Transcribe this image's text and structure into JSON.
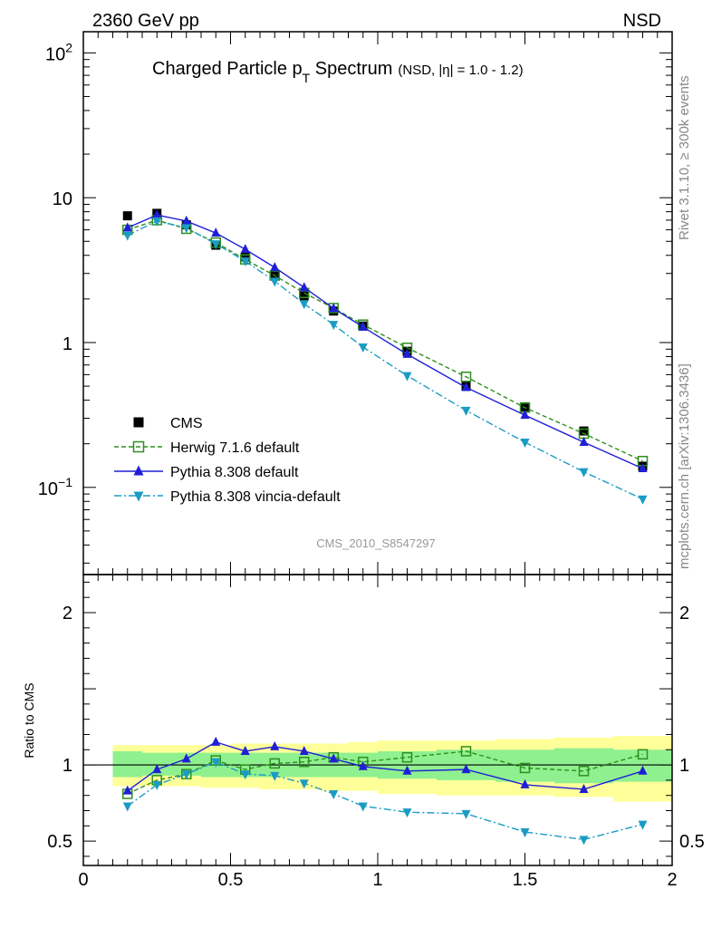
{
  "header": {
    "left": "2360 GeV pp",
    "right": "NSD"
  },
  "side_text": {
    "rivet": "Rivet 3.1.10, ≥ 300k events",
    "mcplots": "mcplots.cern.ch [arXiv:1306.3436]"
  },
  "chart_data": [
    {
      "type": "line",
      "panel": "main",
      "title_main": "Charged Particle p",
      "title_sub": "T",
      "title_rest": " Spectrum",
      "title_extra": "(NSD, |η| = 1.0 - 1.2)",
      "analysis_label": "CMS_2010_S8547297",
      "y_scale": "log",
      "xlim": [
        0,
        2
      ],
      "ylim": [
        0.025,
        140
      ],
      "y_ticks": [
        {
          "value": 100,
          "base": "10",
          "exp": "2"
        },
        {
          "value": 10,
          "base": "10",
          "exp": ""
        },
        {
          "value": 1,
          "base": "1",
          "exp": ""
        },
        {
          "value": 0.1,
          "base": "10",
          "exp": "−1"
        }
      ],
      "legend_position": "lower-left",
      "series": [
        {
          "name": "CMS",
          "color": "#000000",
          "marker": "square-filled",
          "line": "none",
          "x": [
            0.15,
            0.25,
            0.35,
            0.45,
            0.55,
            0.65,
            0.75,
            0.85,
            0.95,
            1.1,
            1.3,
            1.5,
            1.7,
            1.9
          ],
          "y": [
            7.5,
            7.8,
            6.5,
            4.7,
            3.9,
            2.9,
            2.1,
            1.65,
            1.3,
            0.87,
            0.5,
            0.36,
            0.245,
            0.14
          ]
        },
        {
          "name": "Herwig 7.1.6 default",
          "color": "#2f8f1f",
          "marker": "square-open",
          "line": "dashed",
          "x": [
            0.15,
            0.25,
            0.35,
            0.45,
            0.55,
            0.65,
            0.75,
            0.85,
            0.95,
            1.1,
            1.3,
            1.5,
            1.7,
            1.9
          ],
          "y": [
            6.0,
            7.0,
            6.1,
            4.9,
            3.75,
            2.9,
            2.2,
            1.73,
            1.33,
            0.92,
            0.58,
            0.355,
            0.235,
            0.152
          ]
        },
        {
          "name": "Pythia 8.308 default",
          "color": "#1f1fd6",
          "marker": "triangle-up",
          "line": "solid",
          "x": [
            0.15,
            0.25,
            0.35,
            0.45,
            0.55,
            0.65,
            0.75,
            0.85,
            0.95,
            1.1,
            1.3,
            1.5,
            1.7,
            1.9
          ],
          "y": [
            6.2,
            7.6,
            6.9,
            5.7,
            4.4,
            3.3,
            2.4,
            1.72,
            1.28,
            0.83,
            0.49,
            0.315,
            0.205,
            0.135
          ]
        },
        {
          "name": "Pythia 8.308 vincia-default",
          "color": "#1b9cc4",
          "marker": "triangle-down",
          "line": "dashdot",
          "x": [
            0.15,
            0.25,
            0.35,
            0.45,
            0.55,
            0.65,
            0.75,
            0.85,
            0.95,
            1.1,
            1.3,
            1.5,
            1.7,
            1.9
          ],
          "y": [
            5.5,
            6.9,
            6.2,
            4.8,
            3.65,
            2.65,
            1.85,
            1.33,
            0.93,
            0.59,
            0.34,
            0.205,
            0.128,
            0.083
          ]
        }
      ]
    },
    {
      "type": "line",
      "panel": "ratio",
      "ylabel": "Ratio to CMS",
      "xlim": [
        0,
        2
      ],
      "ylim": [
        0.34,
        2.25
      ],
      "x_ticks": [
        {
          "value": 0,
          "label": "0"
        },
        {
          "value": 0.5,
          "label": "0.5"
        },
        {
          "value": 1,
          "label": "1"
        },
        {
          "value": 1.5,
          "label": "1.5"
        },
        {
          "value": 2,
          "label": "2"
        }
      ],
      "y_ticks": [
        {
          "value": 2,
          "label": "2"
        },
        {
          "value": 1,
          "label": "1"
        },
        {
          "value": 0.5,
          "label": "0.5"
        }
      ],
      "bands": {
        "bin_edges": [
          0.1,
          0.2,
          0.3,
          0.4,
          0.5,
          0.6,
          0.7,
          0.8,
          0.9,
          1.0,
          1.2,
          1.4,
          1.6,
          1.8,
          2.0
        ],
        "stat_color": "#8ff08f",
        "total_color": "#ffff99",
        "stat_lo": [
          0.92,
          0.93,
          0.93,
          0.92,
          0.92,
          0.92,
          0.92,
          0.92,
          0.92,
          0.91,
          0.9,
          0.89,
          0.88,
          0.89
        ],
        "stat_hi": [
          1.09,
          1.08,
          1.08,
          1.08,
          1.08,
          1.08,
          1.08,
          1.08,
          1.08,
          1.09,
          1.1,
          1.1,
          1.11,
          1.1
        ],
        "total_lo": [
          0.86,
          0.86,
          0.86,
          0.85,
          0.85,
          0.84,
          0.84,
          0.83,
          0.83,
          0.81,
          0.8,
          0.8,
          0.79,
          0.76
        ],
        "total_hi": [
          1.13,
          1.13,
          1.13,
          1.13,
          1.14,
          1.14,
          1.14,
          1.14,
          1.15,
          1.16,
          1.16,
          1.17,
          1.18,
          1.19
        ]
      },
      "series": [
        {
          "name": "Herwig 7.1.6 default",
          "color": "#2f8f1f",
          "marker": "square-open",
          "line": "dashed",
          "x": [
            0.15,
            0.25,
            0.35,
            0.45,
            0.55,
            0.65,
            0.75,
            0.85,
            0.95,
            1.1,
            1.3,
            1.5,
            1.7,
            1.9
          ],
          "y": [
            0.81,
            0.9,
            0.94,
            1.03,
            0.97,
            1.01,
            1.02,
            1.05,
            1.02,
            1.05,
            1.09,
            0.98,
            0.96,
            1.07
          ]
        },
        {
          "name": "Pythia 8.308 default",
          "color": "#1f1fd6",
          "marker": "triangle-up",
          "line": "solid",
          "x": [
            0.15,
            0.25,
            0.35,
            0.45,
            0.55,
            0.65,
            0.75,
            0.85,
            0.95,
            1.1,
            1.3,
            1.5,
            1.7,
            1.9
          ],
          "y": [
            0.83,
            0.97,
            1.04,
            1.15,
            1.09,
            1.12,
            1.09,
            1.04,
            0.99,
            0.96,
            0.97,
            0.87,
            0.84,
            0.96
          ]
        },
        {
          "name": "Pythia 8.308 vincia-default",
          "color": "#1b9cc4",
          "marker": "triangle-down",
          "line": "dashdot",
          "x": [
            0.15,
            0.25,
            0.35,
            0.45,
            0.55,
            0.65,
            0.75,
            0.85,
            0.95,
            1.1,
            1.3,
            1.5,
            1.7,
            1.9
          ],
          "y": [
            0.73,
            0.87,
            0.94,
            1.02,
            0.94,
            0.93,
            0.88,
            0.81,
            0.73,
            0.69,
            0.68,
            0.56,
            0.51,
            0.61
          ]
        }
      ]
    }
  ]
}
